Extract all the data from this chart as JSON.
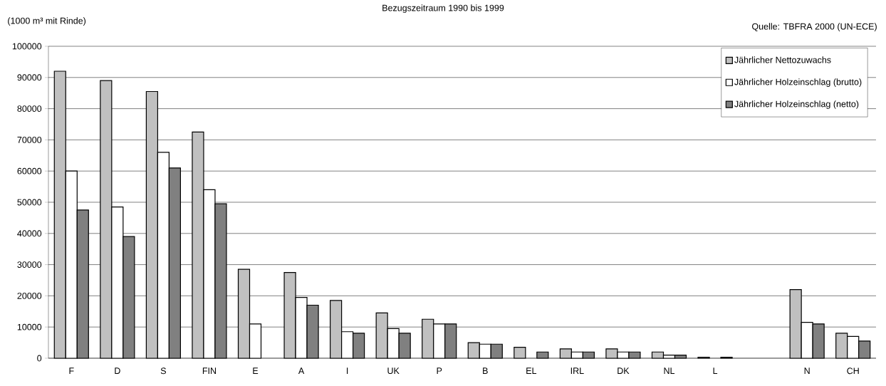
{
  "chart_data": {
    "type": "bar",
    "title": "Bezugszeitraum 1990 bis 1999",
    "ylabel": "(1000 m³ mit Rinde)",
    "annotations": [
      "Quelle: TBFRA 2000 (UN-ECE)"
    ],
    "categories": [
      "F",
      "D",
      "S",
      "FIN",
      "E",
      "A",
      "I",
      "UK",
      "P",
      "B",
      "EL",
      "IRL",
      "DK",
      "NL",
      "L",
      null,
      "N",
      "CH"
    ],
    "series": [
      {
        "name": "Jährlicher Nettozuwachs",
        "color": "#c0c0c0",
        "values": [
          92000,
          89000,
          85500,
          72500,
          28500,
          27500,
          18500,
          14500,
          12500,
          5000,
          3500,
          3000,
          3000,
          2000,
          300,
          null,
          22000,
          8000
        ]
      },
      {
        "name": "Jährlicher Holzeinschlag (brutto)",
        "color": "#ffffff",
        "values": [
          60000,
          48500,
          66000,
          54000,
          11000,
          19500,
          8500,
          9500,
          11000,
          4500,
          null,
          2000,
          2000,
          1000,
          null,
          null,
          11500,
          7000
        ]
      },
      {
        "name": "Jährlicher Holzeinschlag (netto)",
        "color": "#808080",
        "values": [
          47500,
          39000,
          61000,
          49500,
          null,
          17000,
          8000,
          8000,
          11000,
          4500,
          2000,
          2000,
          2000,
          1000,
          300,
          null,
          11000,
          5500
        ]
      }
    ],
    "ylim": [
      0,
      100000
    ],
    "yticks": [
      0,
      10000,
      20000,
      30000,
      40000,
      50000,
      60000,
      70000,
      80000,
      90000,
      100000
    ],
    "grid": "y",
    "legend": "top right"
  }
}
